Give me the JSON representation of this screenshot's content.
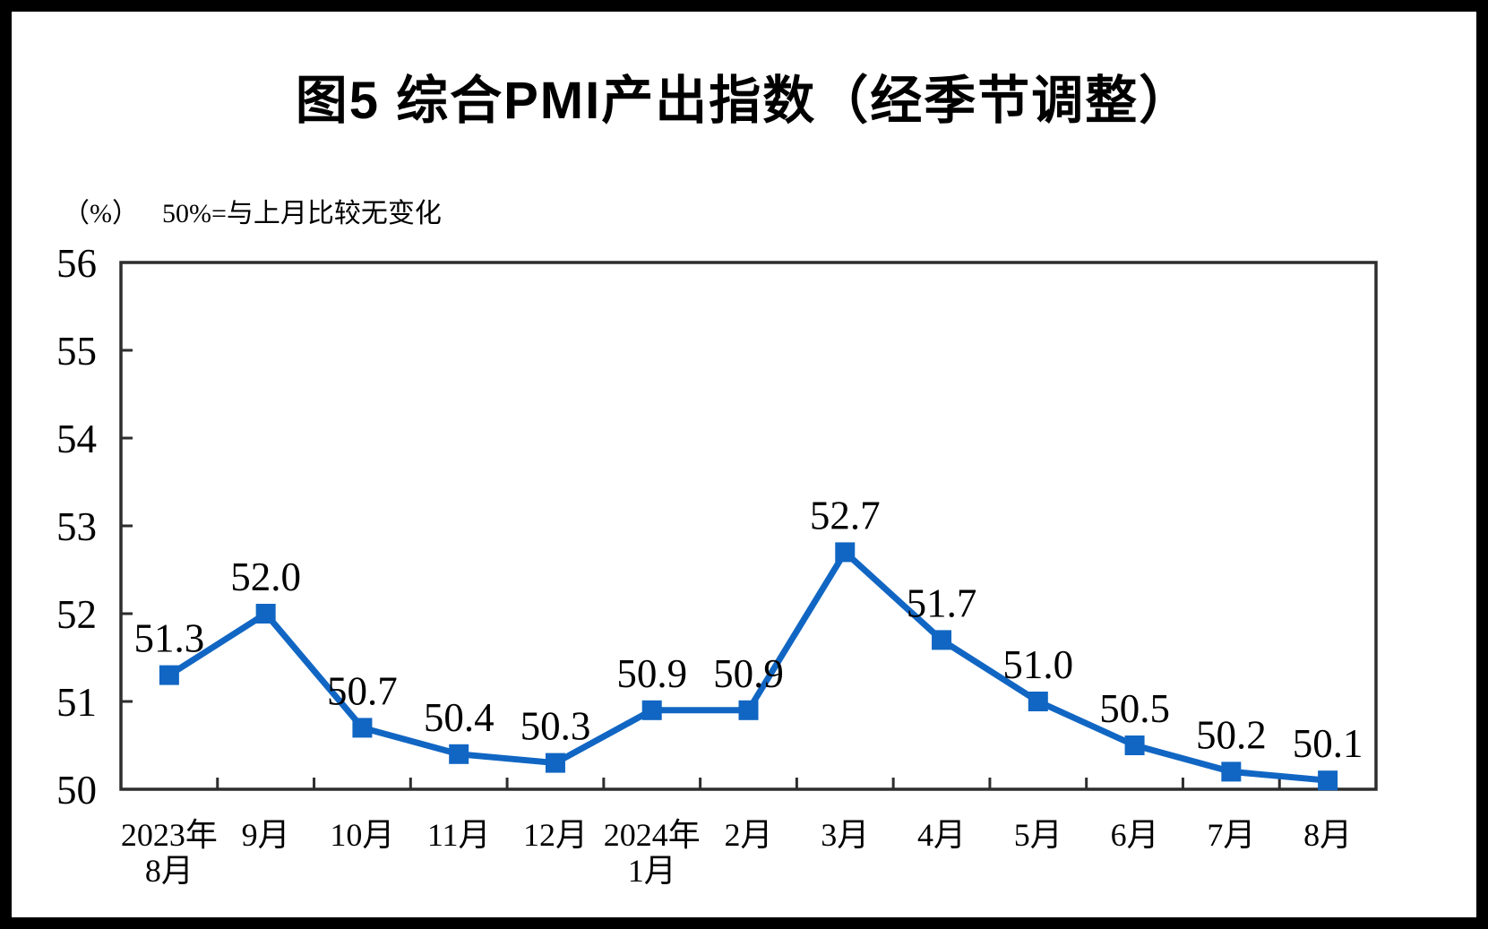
{
  "title": "图5 综合PMI产出指数（经季节调整）",
  "unit_note": "（%）",
  "subtitle": "50%=与上月比较无变化",
  "chart_data": {
    "type": "line",
    "title": "图5 综合PMI产出指数（经季节调整）",
    "unit_label": "（%）",
    "note": "50%=与上月比较无变化",
    "categories": [
      "2023年\n8月",
      "9月",
      "10月",
      "11月",
      "12月",
      "2024年\n1月",
      "2月",
      "3月",
      "4月",
      "5月",
      "6月",
      "7月",
      "8月"
    ],
    "series": [
      {
        "name": "综合PMI产出指数",
        "values": [
          51.3,
          52.0,
          50.7,
          50.4,
          50.3,
          50.9,
          50.9,
          52.7,
          51.7,
          51.0,
          50.5,
          50.2,
          50.1
        ]
      }
    ],
    "data_labels": [
      "51.3",
      "52.0",
      "50.7",
      "50.4",
      "50.3",
      "50.9",
      "50.9",
      "52.7",
      "51.7",
      "51.0",
      "50.5",
      "50.2",
      "50.1"
    ],
    "ylim": [
      50,
      56
    ],
    "yticks": [
      50,
      51,
      52,
      53,
      54,
      55,
      56
    ],
    "grid": false,
    "legend": "none",
    "line_color": "#1166C3",
    "marker": "square",
    "axis_color": "#2D2D2D",
    "text_color": "#000000"
  }
}
